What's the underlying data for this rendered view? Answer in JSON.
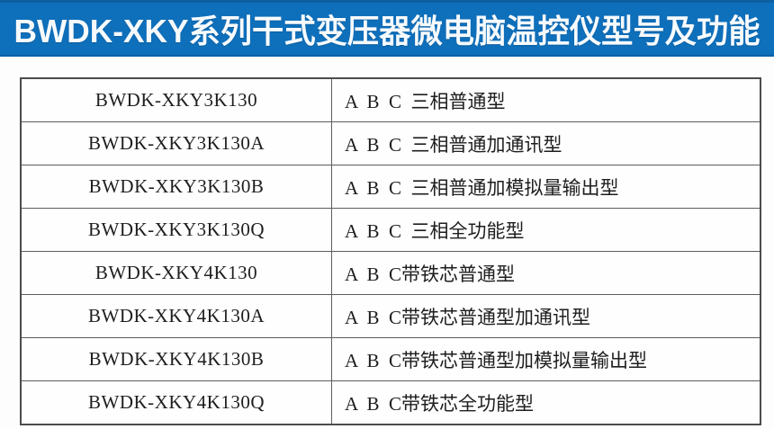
{
  "banner": {
    "title": "BWDK-XKY系列干式变压器微电脑温控仪型号及功能",
    "background_color": "#0e6fbb",
    "text_color": "#f7fafc"
  },
  "table": {
    "border_color": "#4c4c4c",
    "rows": [
      {
        "model": "BWDK-XKY3K130",
        "function": "A  B  C  三相普通型"
      },
      {
        "model": "BWDK-XKY3K130A",
        "function": "A  B  C  三相普通加通讯型"
      },
      {
        "model": "BWDK-XKY3K130B",
        "function": "A  B  C  三相普通加模拟量输出型"
      },
      {
        "model": "BWDK-XKY3K130Q",
        "function": "A  B  C  三相全功能型"
      },
      {
        "model": "BWDK-XKY4K130",
        "function": "A  B  C带铁芯普通型"
      },
      {
        "model": "BWDK-XKY4K130A",
        "function": "A  B  C带铁芯普通型加通讯型"
      },
      {
        "model": "BWDK-XKY4K130B",
        "function": "A  B  C带铁芯普通型加模拟量输出型"
      },
      {
        "model": "BWDK-XKY4K130Q",
        "function": "A  B  C带铁芯全功能型"
      }
    ]
  }
}
